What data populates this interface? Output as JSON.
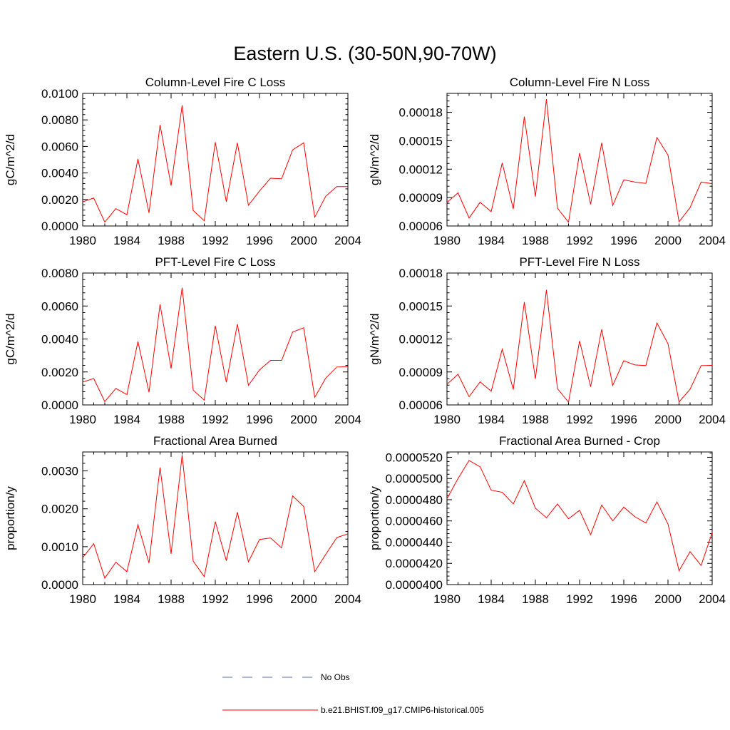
{
  "figure_title": "Eastern U.S. (30-50N,90-70W)",
  "legend": [
    {
      "label": "No Obs",
      "color": "#5a6fa8",
      "dash": true
    },
    {
      "label": "b.e21.BHIST.f09_g17.CMIP6-historical.005",
      "color": "#ff0000",
      "dash": false
    }
  ],
  "chart_data": [
    {
      "type": "line",
      "title": "Column-Level Fire C Loss",
      "xlabel": "",
      "ylabel": "gC/m^2/d",
      "xlim": [
        1980,
        2004
      ],
      "ylim": [
        0.0,
        0.01
      ],
      "xticks": [
        "1980",
        "1984",
        "1988",
        "1992",
        "1996",
        "2000",
        "2004"
      ],
      "yticks": [
        {
          "v": 0.0,
          "label": "0.0000"
        },
        {
          "v": 0.002,
          "label": "0.0020"
        },
        {
          "v": 0.004,
          "label": "0.0040"
        },
        {
          "v": 0.006,
          "label": "0.0060"
        },
        {
          "v": 0.008,
          "label": "0.0080"
        },
        {
          "v": 0.01,
          "label": "0.0100"
        }
      ],
      "x": [
        1980,
        1981,
        1982,
        1983,
        1984,
        1985,
        1986,
        1987,
        1988,
        1989,
        1990,
        1991,
        1992,
        1993,
        1994,
        1995,
        1996,
        1997,
        1998,
        1999,
        2000,
        2001,
        2002,
        2003,
        2004
      ],
      "series": [
        {
          "name": "b.e21.BHIST.f09_g17.CMIP6-historical.005",
          "color": "#ff0000",
          "values": [
            0.00182,
            0.00211,
            0.00029,
            0.00131,
            0.00085,
            0.00506,
            0.00099,
            0.00762,
            0.00304,
            0.00911,
            0.00117,
            0.0004,
            0.00632,
            0.00182,
            0.00627,
            0.00156,
            0.00264,
            0.0036,
            0.00356,
            0.00574,
            0.00627,
            0.00066,
            0.00225,
            0.00297,
            0.00297
          ]
        }
      ]
    },
    {
      "type": "line",
      "title": "Column-Level Fire N Loss",
      "xlabel": "",
      "ylabel": "gN/m^2/d",
      "xlim": [
        1980,
        2004
      ],
      "ylim": [
        6e-05,
        0.0002
      ],
      "xticks": [
        "1980",
        "1984",
        "1988",
        "1992",
        "1996",
        "2000",
        "2004"
      ],
      "yticks": [
        {
          "v": 6e-05,
          "label": "0.00006"
        },
        {
          "v": 9e-05,
          "label": "0.00009"
        },
        {
          "v": 0.00012,
          "label": "0.00012"
        },
        {
          "v": 0.00015,
          "label": "0.00015"
        },
        {
          "v": 0.00018,
          "label": "0.00018"
        }
      ],
      "x": [
        1980,
        1981,
        1982,
        1983,
        1984,
        1985,
        1986,
        1987,
        1988,
        1989,
        1990,
        1991,
        1992,
        1993,
        1994,
        1995,
        1996,
        1997,
        1998,
        1999,
        2000,
        2001,
        2002,
        2003,
        2004
      ],
      "series": [
        {
          "name": "b.e21.BHIST.f09_g17.CMIP6-historical.005",
          "color": "#ff0000",
          "values": [
            8.48e-05,
            9.5e-05,
            6.84e-05,
            8.5e-05,
            7.51e-05,
            0.0001266,
            7.79e-05,
            0.0001755,
            9.1e-05,
            0.0001939,
            7.88e-05,
            6.4e-05,
            0.000137,
            8.29e-05,
            0.0001478,
            8.17e-05,
            0.0001087,
            0.0001064,
            0.000105,
            0.0001534,
            0.0001349,
            6.45e-05,
            7.94e-05,
            0.0001064,
            0.0001047
          ]
        }
      ]
    },
    {
      "type": "line",
      "title": "PFT-Level Fire C Loss",
      "xlabel": "",
      "ylabel": "gC/m^2/d",
      "xlim": [
        1980,
        2004
      ],
      "ylim": [
        0.0,
        0.008
      ],
      "xticks": [
        "1980",
        "1984",
        "1988",
        "1992",
        "1996",
        "2000",
        "2004"
      ],
      "yticks": [
        {
          "v": 0.0,
          "label": "0.0000"
        },
        {
          "v": 0.002,
          "label": "0.0020"
        },
        {
          "v": 0.004,
          "label": "0.0040"
        },
        {
          "v": 0.006,
          "label": "0.0060"
        },
        {
          "v": 0.008,
          "label": "0.0080"
        }
      ],
      "x": [
        1980,
        1981,
        1982,
        1983,
        1984,
        1985,
        1986,
        1987,
        1988,
        1989,
        1990,
        1991,
        1992,
        1993,
        1994,
        1995,
        1996,
        1997,
        1998,
        1999,
        2000,
        2001,
        2002,
        2003,
        2004
      ],
      "series": [
        {
          "name": "b.e21.BHIST.f09_g17.CMIP6-historical.005",
          "color": "#ff0000",
          "values": [
            0.00139,
            0.0016,
            0.0002,
            0.001,
            0.00063,
            0.00385,
            0.00077,
            0.0061,
            0.00221,
            0.00711,
            0.0009,
            0.00029,
            0.0048,
            0.00137,
            0.0049,
            0.00119,
            0.00212,
            0.0027,
            0.0027,
            0.00442,
            0.00468,
            0.00046,
            0.00163,
            0.0023,
            0.00232
          ]
        }
      ]
    },
    {
      "type": "line",
      "title": "PFT-Level Fire N Loss",
      "xlabel": "",
      "ylabel": "gN/m^2/d",
      "xlim": [
        1980,
        2004
      ],
      "ylim": [
        6e-05,
        0.00018
      ],
      "xticks": [
        "1980",
        "1984",
        "1988",
        "1992",
        "1996",
        "2000",
        "2004"
      ],
      "yticks": [
        {
          "v": 6e-05,
          "label": "0.00006"
        },
        {
          "v": 9e-05,
          "label": "0.00009"
        },
        {
          "v": 0.00012,
          "label": "0.00012"
        },
        {
          "v": 0.00015,
          "label": "0.00015"
        },
        {
          "v": 0.00018,
          "label": "0.00018"
        }
      ],
      "x": [
        1980,
        1981,
        1982,
        1983,
        1984,
        1985,
        1986,
        1987,
        1988,
        1989,
        1990,
        1991,
        1992,
        1993,
        1994,
        1995,
        1996,
        1997,
        1998,
        1999,
        2000,
        2001,
        2002,
        2003,
        2004
      ],
      "series": [
        {
          "name": "b.e21.BHIST.f09_g17.CMIP6-historical.005",
          "color": "#ff0000",
          "values": [
            7.88e-05,
            8.79e-05,
            6.75e-05,
            8.1e-05,
            7.24e-05,
            0.0001107,
            7.4e-05,
            0.0001536,
            8.37e-05,
            0.0001647,
            7.48e-05,
            6.25e-05,
            0.0001182,
            7.65e-05,
            0.0001288,
            7.77e-05,
            0.0001002,
            9.64e-05,
            9.58e-05,
            0.0001346,
            0.0001157,
            6.27e-05,
            7.43e-05,
            9.58e-05,
            9.6e-05
          ]
        }
      ]
    },
    {
      "type": "line",
      "title": "Fractional Area Burned",
      "xlabel": "",
      "ylabel": "proportion/y",
      "xlim": [
        1980,
        2004
      ],
      "ylim": [
        0.0,
        0.0035
      ],
      "xticks": [
        "1980",
        "1984",
        "1988",
        "1992",
        "1996",
        "2000",
        "2004"
      ],
      "yticks": [
        {
          "v": 0.0,
          "label": "0.0000"
        },
        {
          "v": 0.001,
          "label": "0.0010"
        },
        {
          "v": 0.002,
          "label": "0.0020"
        },
        {
          "v": 0.003,
          "label": "0.0030"
        }
      ],
      "x": [
        1980,
        1981,
        1982,
        1983,
        1984,
        1985,
        1986,
        1987,
        1988,
        1989,
        1990,
        1991,
        1992,
        1993,
        1994,
        1995,
        1996,
        1997,
        1998,
        1999,
        2000,
        2001,
        2002,
        2003,
        2004
      ],
      "series": [
        {
          "name": "b.e21.BHIST.f09_g17.CMIP6-historical.005",
          "color": "#ff0000",
          "values": [
            0.00071,
            0.00108,
            0.00017,
            0.00059,
            0.00034,
            0.00158,
            0.00057,
            0.00309,
            0.00081,
            0.00342,
            0.00062,
            0.00021,
            0.00166,
            0.00063,
            0.00191,
            0.0006,
            0.00119,
            0.00123,
            0.00097,
            0.00234,
            0.00206,
            0.00034,
            0.0008,
            0.00124,
            0.00134
          ]
        }
      ]
    },
    {
      "type": "line",
      "title": "Fractional Area Burned - Crop",
      "xlabel": "",
      "ylabel": "proportion/y",
      "xlim": [
        1980,
        2004
      ],
      "ylim": [
        4e-05,
        5.25e-05
      ],
      "xticks": [
        "1980",
        "1984",
        "1988",
        "1992",
        "1996",
        "2000",
        "2004"
      ],
      "yticks": [
        {
          "v": 4e-05,
          "label": "0.0000400"
        },
        {
          "v": 4.2e-05,
          "label": "0.0000420"
        },
        {
          "v": 4.4e-05,
          "label": "0.0000440"
        },
        {
          "v": 4.6e-05,
          "label": "0.0000460"
        },
        {
          "v": 4.8e-05,
          "label": "0.0000480"
        },
        {
          "v": 5e-05,
          "label": "0.0000500"
        },
        {
          "v": 5.2e-05,
          "label": "0.0000520"
        }
      ],
      "x": [
        1980,
        1981,
        1982,
        1983,
        1984,
        1985,
        1986,
        1987,
        1988,
        1989,
        1990,
        1991,
        1992,
        1993,
        1994,
        1995,
        1996,
        1997,
        1998,
        1999,
        2000,
        2001,
        2002,
        2003,
        2004
      ],
      "series": [
        {
          "name": "b.e21.BHIST.f09_g17.CMIP6-historical.005",
          "color": "#ff0000",
          "values": [
            4.81e-05,
            5e-05,
            5.17e-05,
            5.11e-05,
            4.89e-05,
            4.87e-05,
            4.76e-05,
            4.98e-05,
            4.72e-05,
            4.63e-05,
            4.76e-05,
            4.62e-05,
            4.7e-05,
            4.47e-05,
            4.75e-05,
            4.6e-05,
            4.73e-05,
            4.64e-05,
            4.58e-05,
            4.78e-05,
            4.57e-05,
            4.13e-05,
            4.31e-05,
            4.18e-05,
            4.49e-05
          ]
        }
      ]
    }
  ]
}
